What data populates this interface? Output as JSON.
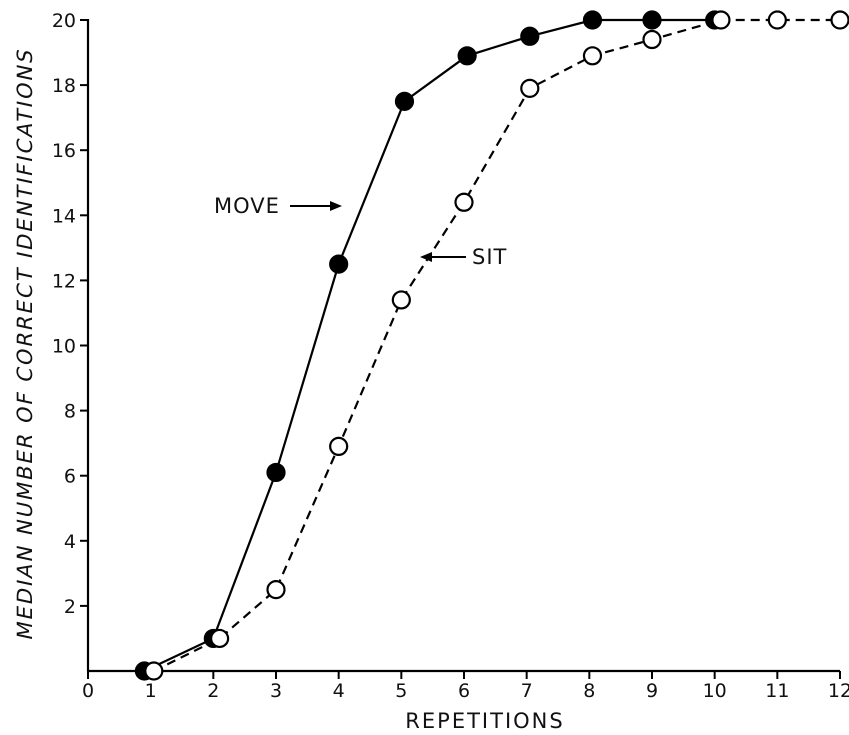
{
  "chart_data": {
    "type": "line",
    "xlabel": "REPETITIONS",
    "ylabel": "MEDIAN NUMBER OF CORRECT IDENTIFICATIONS",
    "xlim": [
      0,
      12
    ],
    "ylim": [
      0,
      20
    ],
    "x_ticks": [
      "0",
      "1",
      "2",
      "3",
      "4",
      "5",
      "6",
      "7",
      "8",
      "9",
      "10",
      "11",
      "12"
    ],
    "y_ticks": [
      "2",
      "4",
      "6",
      "8",
      "10",
      "12",
      "14",
      "16",
      "18",
      "20"
    ],
    "grid": false,
    "series": [
      {
        "name": "MOVE",
        "marker": "filled-circle",
        "line": "solid",
        "color": "#000000",
        "x": [
          0.9,
          2.0,
          3.0,
          4.0,
          5.05,
          6.05,
          7.05,
          8.05,
          9.0,
          10.0
        ],
        "y": [
          0,
          1.0,
          6.1,
          12.5,
          17.5,
          18.9,
          19.5,
          20,
          20,
          20
        ]
      },
      {
        "name": "SIT",
        "marker": "open-circle",
        "line": "dashed",
        "color": "#000000",
        "x": [
          1.05,
          2.1,
          3.0,
          4.0,
          5.0,
          6.0,
          7.05,
          8.05,
          9.0,
          10.1,
          11.0,
          12.0
        ],
        "y": [
          0,
          1.0,
          2.5,
          6.9,
          11.4,
          14.4,
          17.9,
          18.9,
          19.4,
          20,
          20,
          20
        ]
      }
    ]
  }
}
